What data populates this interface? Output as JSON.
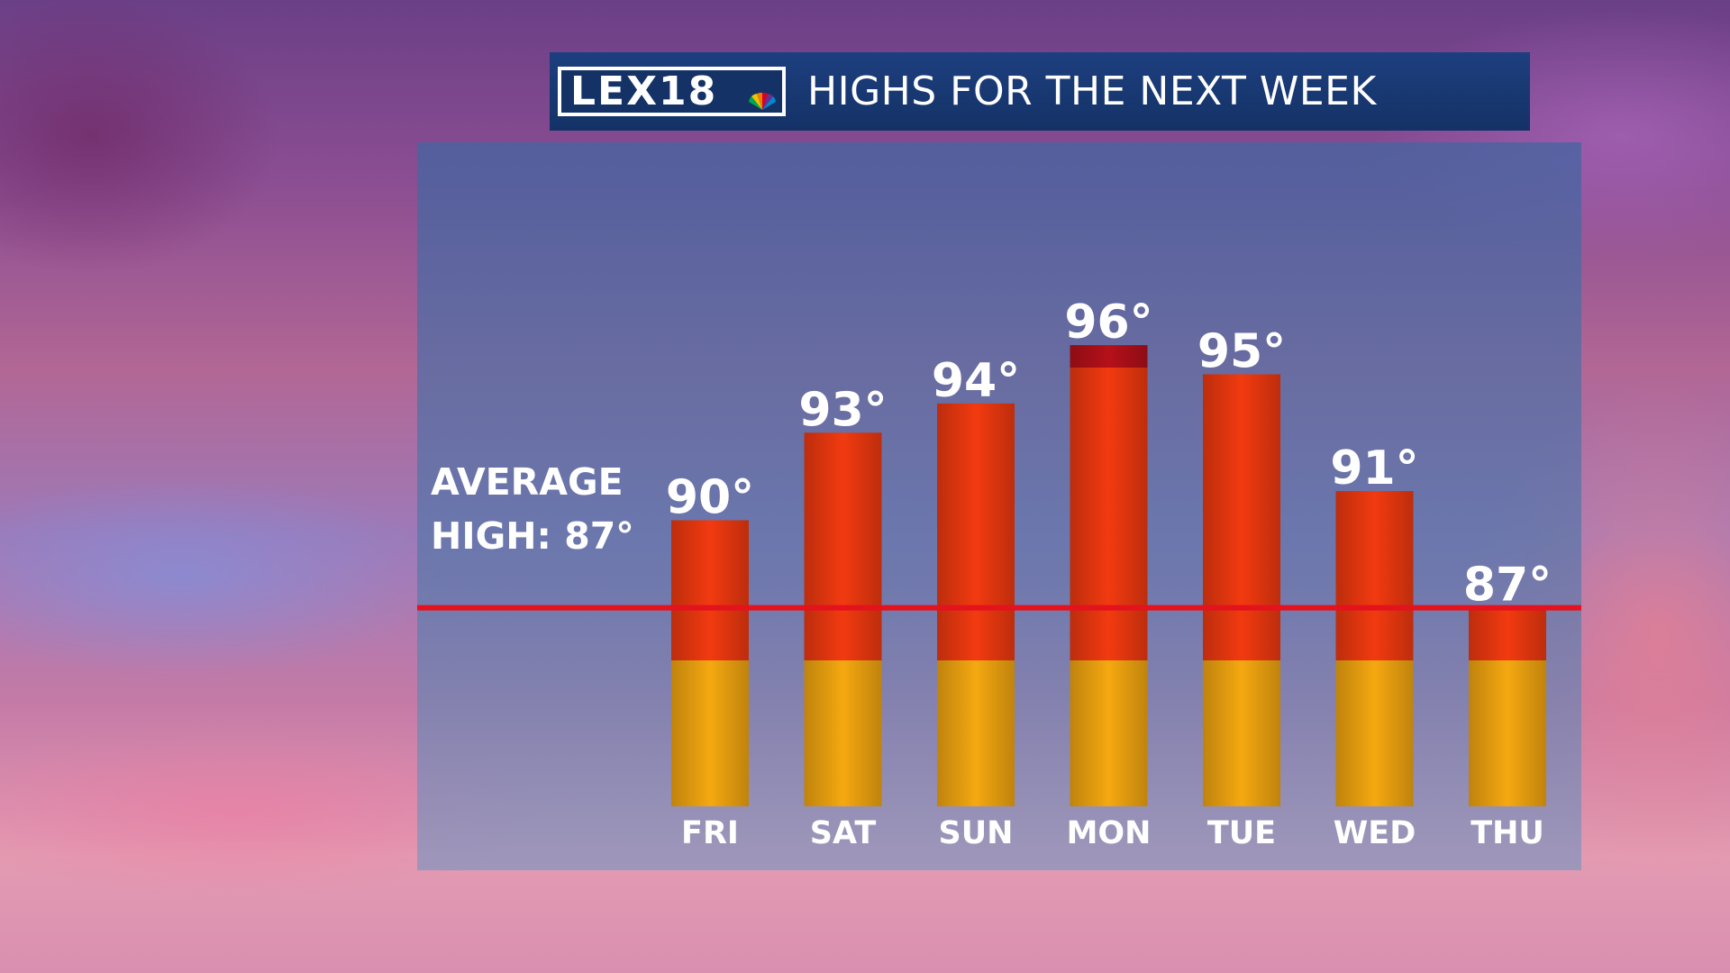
{
  "banner": {
    "logo_text": "LEX18",
    "title": "HIGHS FOR THE NEXT WEEK"
  },
  "average": {
    "label": "AVERAGE\nHIGH: 87°",
    "value": 87
  },
  "colors": {
    "bar_top": "#b5101a",
    "bar_mid": "#f23a10",
    "bar_bottom": "#f5a810",
    "avg_line": "#e3121c",
    "banner": "#143266"
  },
  "chart_data": {
    "type": "bar",
    "title": "HIGHS FOR THE NEXT WEEK",
    "categories": [
      "FRI",
      "SAT",
      "SUN",
      "MON",
      "TUE",
      "WED",
      "THU"
    ],
    "values": [
      90,
      93,
      94,
      96,
      95,
      91,
      87
    ],
    "value_labels": [
      "90°",
      "93°",
      "94°",
      "96°",
      "95°",
      "91°",
      "87°"
    ],
    "reference_line": 87,
    "grid": false
  }
}
